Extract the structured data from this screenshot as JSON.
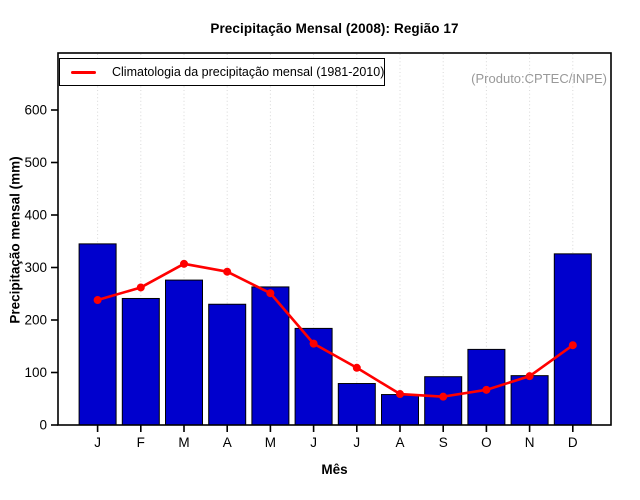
{
  "chart_data": {
    "type": "bar",
    "title": "Precipitação Mensal (2008): Região 17",
    "xlabel": "Mês",
    "ylabel": "Precipitação mensal (mm)",
    "annotation": "(Produto:CPTEC/INPE)",
    "categories": [
      "J",
      "F",
      "M",
      "A",
      "M",
      "J",
      "J",
      "A",
      "S",
      "O",
      "N",
      "D"
    ],
    "series": [
      {
        "type": "bar",
        "color": "#0000CD",
        "values": [
          345,
          241,
          276,
          230,
          263,
          184,
          79,
          58,
          92,
          144,
          94,
          326
        ]
      },
      {
        "type": "line",
        "name": "Climatologia da precipitação mensal (1981-2010)",
        "color": "#FF0000",
        "marker": "circle",
        "values": [
          238,
          262,
          307,
          292,
          251,
          155,
          109,
          59,
          54,
          67,
          93,
          152
        ]
      }
    ],
    "yticks": [
      0,
      100,
      200,
      300,
      400,
      500,
      600
    ],
    "ylim": [
      0,
      708
    ],
    "grid": "vertical-dotted",
    "grid_color": "#D8D8D8",
    "legend_position": "top-left"
  }
}
